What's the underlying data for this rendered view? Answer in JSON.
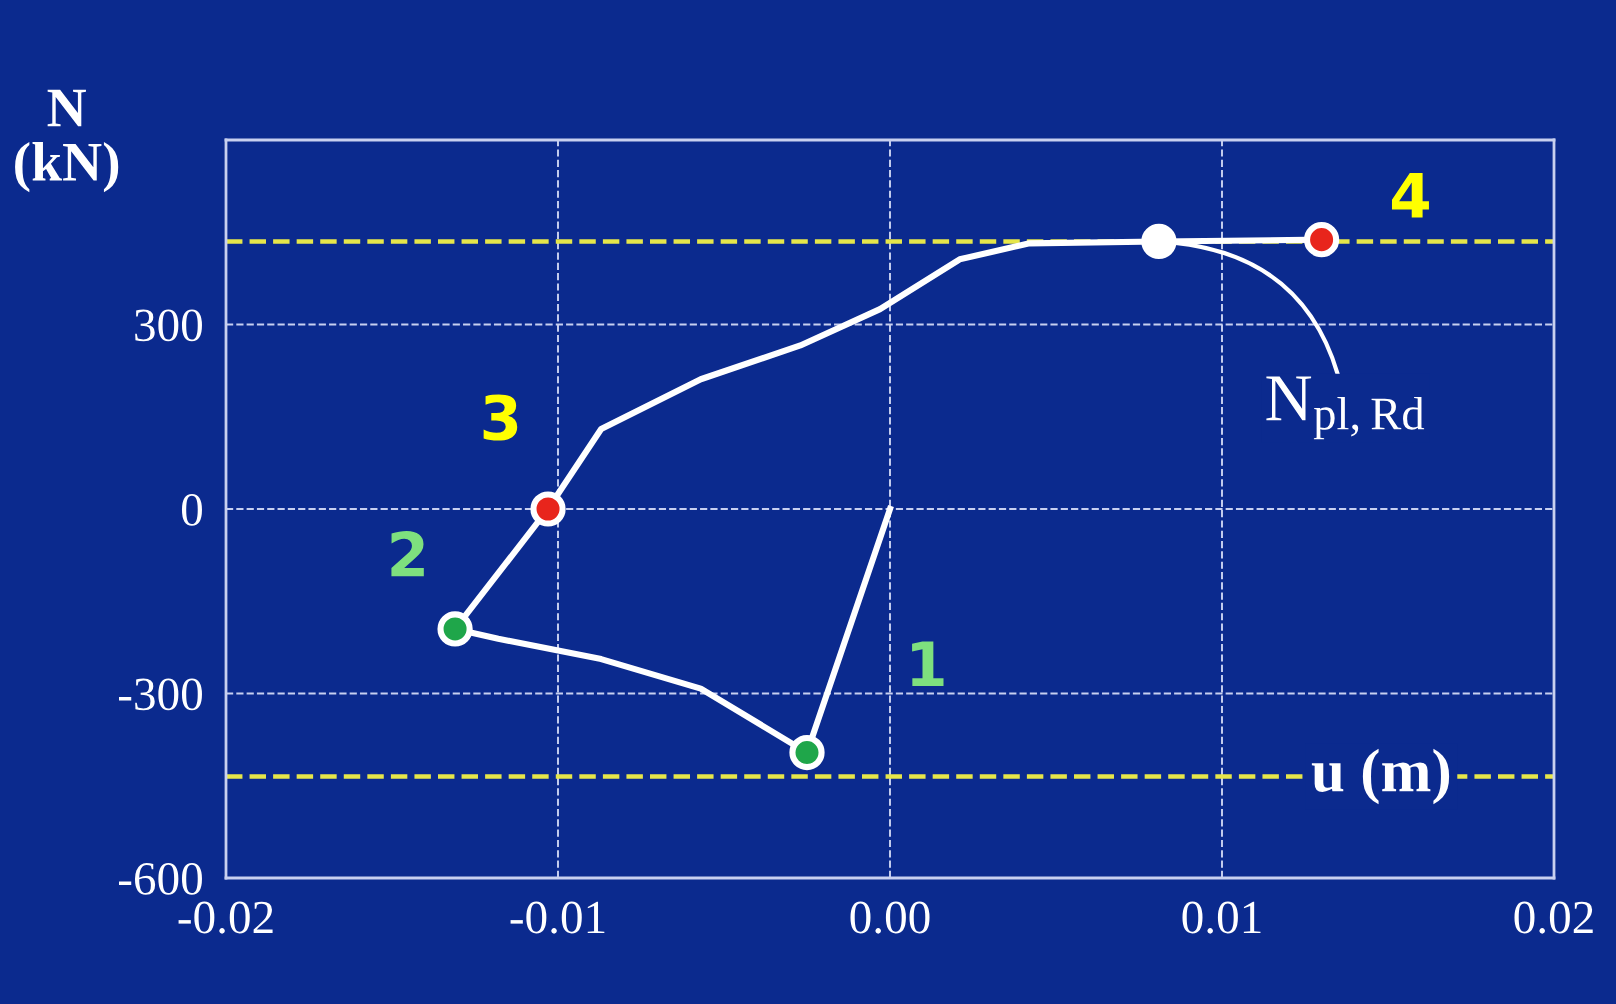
{
  "chart_data": {
    "type": "line",
    "xlabel": "u (m)",
    "ylabel": "N (kN)",
    "xlim": [
      -0.02,
      0.02
    ],
    "xticks": [
      {
        "value": -0.02,
        "label": "-0.02"
      },
      {
        "value": -0.01,
        "label": "-0.01"
      },
      {
        "value": 0.0,
        "label": "0.00"
      },
      {
        "value": 0.01,
        "label": "0.01"
      },
      {
        "value": 0.02,
        "label": "0.02"
      }
    ],
    "ylim": [
      -600,
      600
    ],
    "yticks": [
      -600,
      -300,
      0,
      300,
      {
        "value": 600,
        "label": null
      }
    ],
    "grid": true,
    "line_style": "solid",
    "marker": "none",
    "series": [
      {
        "color": "#ffffff",
        "x": [
          0.0,
          -0.0025,
          -0.0057,
          -0.0087,
          -0.0118,
          -0.0131,
          -0.0103,
          -0.0087,
          -0.0057,
          -0.0027,
          -0.0003,
          0.0021,
          0.0042,
          0.0081,
          0.013
        ],
        "values": [
          0,
          -396,
          -292,
          -244,
          -211,
          -195,
          0,
          130,
          211,
          266,
          325,
          406,
          432,
          435,
          438
        ]
      },
      {
        "type": "scatter",
        "marker": "circle",
        "x": [
          -0.0025,
          -0.0131,
          -0.0103,
          0.0081,
          0.013
        ],
        "values": [
          -396,
          -195,
          0,
          435,
          438
        ],
        "colors": [
          "#1fa64a",
          "#1fa64a",
          "#e8251c",
          "#ffffff",
          "#e8251c"
        ]
      }
    ],
    "ref_lines": [
      {
        "axis": "y",
        "value": 435,
        "color": "#e6e64a",
        "line_style": "dashed"
      },
      {
        "axis": "y",
        "value": -435,
        "color": "#e6e64a",
        "line_style": "dashed"
      }
    ],
    "annotations": [
      {
        "text": "1",
        "x": -0.0025,
        "y": -396
      },
      {
        "text": "2",
        "x": -0.0131,
        "y": -195
      },
      {
        "text": "3",
        "x": -0.0103,
        "y": 0
      },
      {
        "text": "4",
        "x": 0.013,
        "y": 438
      },
      {
        "text": "N$_{pl,Rd}$",
        "x": 0.0081,
        "y": 435
      }
    ]
  }
}
